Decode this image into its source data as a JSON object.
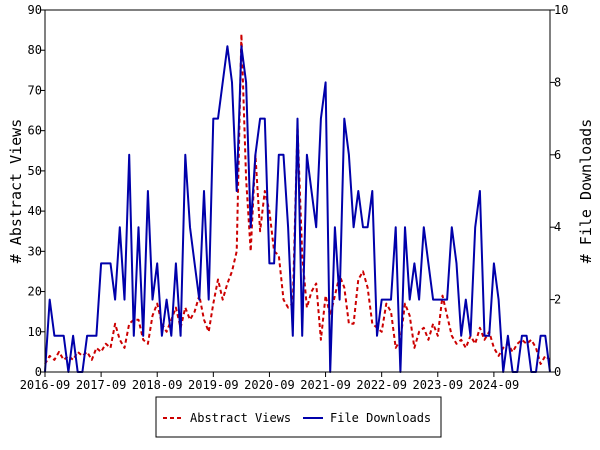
{
  "chart_data": {
    "type": "line",
    "title": "",
    "xlabel": "",
    "ylabel_left": "# Abstract Views",
    "ylabel_right": "# File Downloads",
    "x_range": [
      "2016-09",
      "2025-09"
    ],
    "x_ticks": [
      "2016-09",
      "2017-09",
      "2018-09",
      "2019-09",
      "2020-09",
      "2021-09",
      "2022-09",
      "2023-09",
      "2024-09"
    ],
    "y_left_range": [
      0,
      90
    ],
    "y_left_ticks": [
      0,
      10,
      20,
      30,
      40,
      50,
      60,
      70,
      80,
      90
    ],
    "y_right_range": [
      0,
      10
    ],
    "y_right_ticks": [
      0,
      2,
      4,
      6,
      8,
      10
    ],
    "grid": false,
    "legend_position": "bottom",
    "colors": {
      "abstract_views": "#cc0000",
      "file_downloads": "#0000aa"
    },
    "series": [
      {
        "name": "Abstract Views",
        "axis": "left",
        "style": "dashed",
        "x": [
          "2016-09",
          "2016-10",
          "2016-11",
          "2016-12",
          "2017-01",
          "2017-02",
          "2017-03",
          "2017-04",
          "2017-05",
          "2017-06",
          "2017-07",
          "2017-08",
          "2017-09",
          "2017-10",
          "2017-11",
          "2017-12",
          "2018-01",
          "2018-02",
          "2018-03",
          "2018-04",
          "2018-05",
          "2018-06",
          "2018-07",
          "2018-08",
          "2018-09",
          "2018-10",
          "2018-11",
          "2018-12",
          "2019-01",
          "2019-02",
          "2019-03",
          "2019-04",
          "2019-05",
          "2019-06",
          "2019-07",
          "2019-08",
          "2019-09",
          "2019-10",
          "2019-11",
          "2019-12",
          "2020-01",
          "2020-02",
          "2020-03",
          "2020-04",
          "2020-05",
          "2020-06",
          "2020-07",
          "2020-08",
          "2020-09",
          "2020-10",
          "2020-11",
          "2020-12",
          "2021-01",
          "2021-02",
          "2021-03",
          "2021-04",
          "2021-05",
          "2021-06",
          "2021-07",
          "2021-08",
          "2021-09",
          "2021-10",
          "2021-11",
          "2021-12",
          "2022-01",
          "2022-02",
          "2022-03",
          "2022-04",
          "2022-05",
          "2022-06",
          "2022-07",
          "2022-08",
          "2022-09",
          "2022-10",
          "2022-11",
          "2022-12",
          "2023-01",
          "2023-02",
          "2023-03",
          "2023-04",
          "2023-05",
          "2023-06",
          "2023-07",
          "2023-08",
          "2023-09",
          "2023-10",
          "2023-11",
          "2023-12",
          "2024-01",
          "2024-02",
          "2024-03",
          "2024-04",
          "2024-05",
          "2024-06",
          "2024-07",
          "2024-08",
          "2024-09",
          "2024-10",
          "2024-11",
          "2024-12",
          "2025-01",
          "2025-02",
          "2025-03",
          "2025-04",
          "2025-05",
          "2025-06",
          "2025-07",
          "2025-08",
          "2025-09"
        ],
        "values": [
          2,
          4,
          3,
          5,
          3,
          4,
          3,
          5,
          4,
          5,
          3,
          6,
          5,
          7,
          6,
          12,
          8,
          6,
          12,
          13,
          13,
          8,
          7,
          14,
          17,
          12,
          10,
          13,
          16,
          11,
          16,
          13,
          15,
          19,
          13,
          10,
          17,
          23,
          18,
          22,
          25,
          30,
          84,
          48,
          30,
          54,
          35,
          45,
          40,
          30,
          29,
          18,
          16,
          17,
          61,
          29,
          16,
          20,
          22,
          8,
          19,
          14,
          19,
          24,
          21,
          12,
          12,
          23,
          25,
          21,
          12,
          11,
          10,
          17,
          15,
          6,
          8,
          17,
          14,
          6,
          10,
          11,
          8,
          12,
          9,
          19,
          14,
          9,
          7,
          8,
          6,
          9,
          7,
          11,
          8,
          10,
          6,
          4,
          6,
          7,
          5,
          7,
          8,
          7,
          8,
          6,
          2,
          4,
          3
        ]
      },
      {
        "name": "File Downloads",
        "axis": "right",
        "style": "solid",
        "x": [
          "2016-09",
          "2016-10",
          "2016-11",
          "2016-12",
          "2017-01",
          "2017-02",
          "2017-03",
          "2017-04",
          "2017-05",
          "2017-06",
          "2017-07",
          "2017-08",
          "2017-09",
          "2017-10",
          "2017-11",
          "2017-12",
          "2018-01",
          "2018-02",
          "2018-03",
          "2018-04",
          "2018-05",
          "2018-06",
          "2018-07",
          "2018-08",
          "2018-09",
          "2018-10",
          "2018-11",
          "2018-12",
          "2019-01",
          "2019-02",
          "2019-03",
          "2019-04",
          "2019-05",
          "2019-06",
          "2019-07",
          "2019-08",
          "2019-09",
          "2019-10",
          "2019-11",
          "2019-12",
          "2020-01",
          "2020-02",
          "2020-03",
          "2020-04",
          "2020-05",
          "2020-06",
          "2020-07",
          "2020-08",
          "2020-09",
          "2020-10",
          "2020-11",
          "2020-12",
          "2021-01",
          "2021-02",
          "2021-03",
          "2021-04",
          "2021-05",
          "2021-06",
          "2021-07",
          "2021-08",
          "2021-09",
          "2021-10",
          "2021-11",
          "2021-12",
          "2022-01",
          "2022-02",
          "2022-03",
          "2022-04",
          "2022-05",
          "2022-06",
          "2022-07",
          "2022-08",
          "2022-09",
          "2022-10",
          "2022-11",
          "2022-12",
          "2023-01",
          "2023-02",
          "2023-03",
          "2023-04",
          "2023-05",
          "2023-06",
          "2023-07",
          "2023-08",
          "2023-09",
          "2023-10",
          "2023-11",
          "2023-12",
          "2024-01",
          "2024-02",
          "2024-03",
          "2024-04",
          "2024-05",
          "2024-06",
          "2024-07",
          "2024-08",
          "2024-09",
          "2024-10",
          "2024-11",
          "2024-12",
          "2025-01",
          "2025-02",
          "2025-03",
          "2025-04",
          "2025-05",
          "2025-06",
          "2025-07",
          "2025-08",
          "2025-09"
        ],
        "values": [
          0,
          2,
          1,
          1,
          1,
          0,
          1,
          0,
          0,
          1,
          1,
          1,
          3,
          3,
          3,
          2,
          4,
          2,
          6,
          1,
          4,
          1,
          5,
          2,
          3,
          1,
          2,
          1,
          3,
          1,
          6,
          4,
          3,
          2,
          5,
          2,
          7,
          7,
          8,
          9,
          8,
          5,
          9,
          8,
          4,
          6,
          7,
          7,
          3,
          3,
          6,
          6,
          4,
          1,
          7,
          1,
          6,
          5,
          4,
          7,
          8,
          0,
          4,
          2,
          7,
          6,
          4,
          5,
          4,
          4,
          5,
          1,
          2,
          2,
          2,
          4,
          0,
          4,
          2,
          3,
          2,
          4,
          3,
          2,
          2,
          2,
          2,
          4,
          3,
          1,
          2,
          1,
          4,
          5,
          1,
          1,
          3,
          2,
          0,
          1,
          0,
          0,
          1,
          1,
          0,
          0,
          1,
          1,
          0
        ]
      }
    ]
  }
}
